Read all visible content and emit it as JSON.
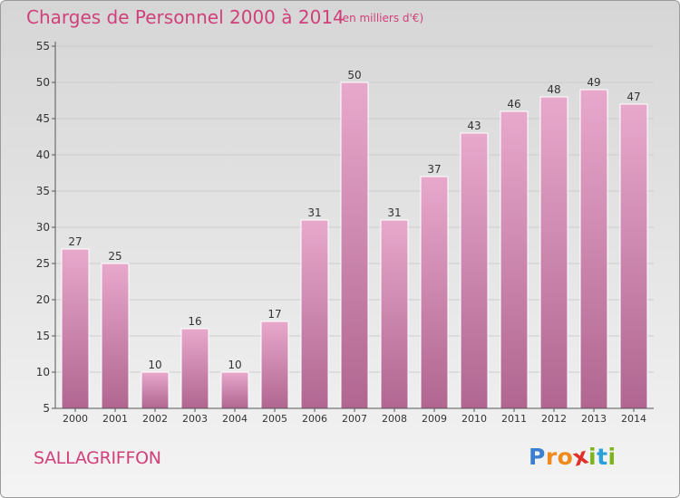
{
  "header": {
    "title": "Charges de Personnel 2000 à 2014",
    "subtitle": "(en milliers d'€)"
  },
  "footer": {
    "commune": "SALLAGRIFFON",
    "logo_letters": [
      "P",
      "r",
      "o",
      "x",
      "i",
      "t",
      "i"
    ],
    "logo_colors": [
      "#3a7fd0",
      "#f08a1c",
      "#f08a1c",
      "#e0302a",
      "#7ab51d",
      "#2aa0d8",
      "#7ab51d"
    ]
  },
  "colors": {
    "bar_top": "#e8a8cc",
    "bar_bottom": "#b06690",
    "axis": "#555555",
    "grid": "#cccccc",
    "text": "#333333",
    "accent": "#d0407a"
  },
  "chart_data": {
    "type": "bar",
    "title": "Charges de Personnel 2000 à 2014",
    "subtitle": "(en milliers d'€)",
    "categories": [
      "2000",
      "2001",
      "2002",
      "2003",
      "2004",
      "2005",
      "2006",
      "2007",
      "2008",
      "2009",
      "2010",
      "2011",
      "2012",
      "2013",
      "2014"
    ],
    "values": [
      27,
      25,
      10,
      16,
      10,
      17,
      31,
      50,
      31,
      37,
      43,
      46,
      48,
      49,
      47
    ],
    "ylim": [
      5,
      55
    ],
    "yticks": [
      5,
      10,
      15,
      20,
      25,
      30,
      35,
      40,
      45,
      50,
      55
    ],
    "grid": "horizontal",
    "legend": "none",
    "data_labels": true
  }
}
